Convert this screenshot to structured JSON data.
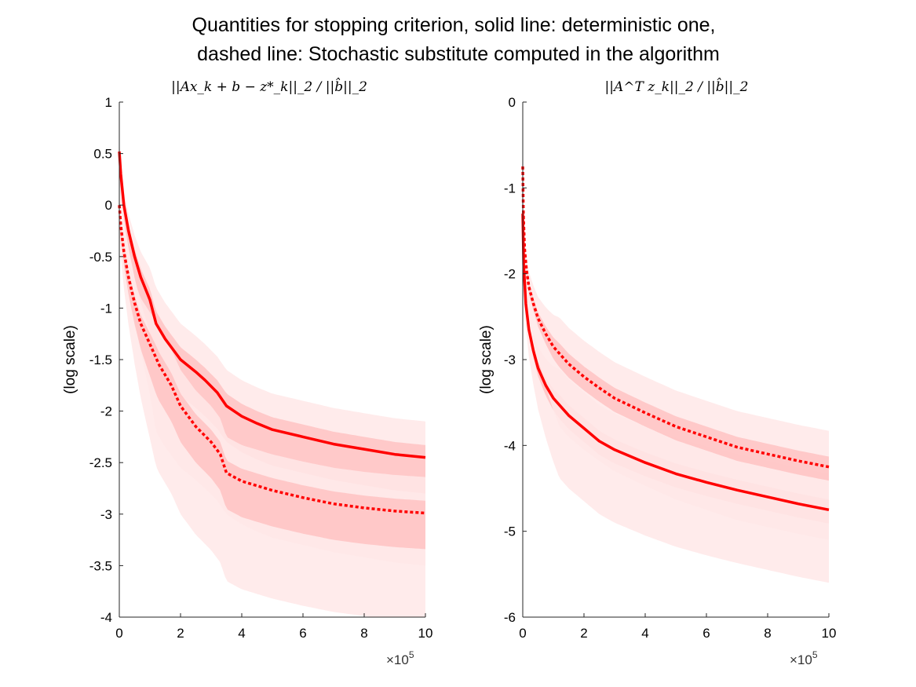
{
  "figure": {
    "title_line1": "Quantities for stopping criterion, solid line: deterministic one,",
    "title_line2": "dashed line: Stochastic substitute computed in the algorithm",
    "line_color": "#ff0000",
    "band_outer_color": "#ffe8e8",
    "band_inner_color": "#ffbdbd",
    "mean_color": "#ff6b6b"
  },
  "chart_data": [
    {
      "type": "line",
      "title": "||Ax_k + b − z*_k||_2 / ||b̂||_2",
      "ylabel": "(log scale)",
      "xlim": [
        0,
        10
      ],
      "x_exponent_label": "×10^5",
      "ylim": [
        -4,
        1
      ],
      "xticks": [
        "0",
        "2",
        "4",
        "6",
        "8",
        "10"
      ],
      "yticks": [
        "1",
        "0.5",
        "0",
        "-0.5",
        "-1",
        "-1.5",
        "-2",
        "-2.5",
        "-3",
        "-3.5",
        "-4"
      ],
      "grid": false,
      "series": [
        {
          "style": "solid",
          "x": [
            0,
            0.05,
            0.15,
            0.3,
            0.5,
            0.7,
            1.0,
            1.2,
            1.5,
            2.0,
            2.5,
            2.8,
            3.2,
            3.5,
            4.0,
            4.5,
            5.0,
            6.0,
            7.0,
            8.0,
            9.0,
            10.0
          ],
          "y": [
            0.52,
            0.3,
            0.0,
            -0.25,
            -0.5,
            -0.7,
            -0.92,
            -1.15,
            -1.3,
            -1.5,
            -1.62,
            -1.7,
            -1.82,
            -1.95,
            -2.05,
            -2.12,
            -2.18,
            -2.25,
            -2.32,
            -2.37,
            -2.42,
            -2.45
          ]
        },
        {
          "style": "dashed",
          "x": [
            0,
            0.05,
            0.15,
            0.3,
            0.5,
            0.7,
            1.0,
            1.3,
            1.7,
            2.0,
            2.5,
            3.0,
            3.3,
            3.5,
            4.0,
            5.0,
            6.0,
            7.0,
            8.0,
            9.0,
            10.0
          ],
          "y": [
            0.0,
            -0.2,
            -0.45,
            -0.7,
            -0.95,
            -1.15,
            -1.35,
            -1.55,
            -1.75,
            -1.95,
            -2.15,
            -2.3,
            -2.42,
            -2.6,
            -2.68,
            -2.77,
            -2.84,
            -2.9,
            -2.94,
            -2.97,
            -2.99
          ]
        }
      ]
    },
    {
      "type": "line",
      "title": "||A^T z_k||_2 / ||b̂||_2",
      "ylabel": "(log scale)",
      "xlim": [
        0,
        10
      ],
      "x_exponent_label": "×10^5",
      "ylim": [
        -6,
        0
      ],
      "xticks": [
        "0",
        "2",
        "4",
        "6",
        "8",
        "10"
      ],
      "yticks": [
        "0",
        "-1",
        "-2",
        "-3",
        "-4",
        "-5",
        "-6"
      ],
      "grid": false,
      "series": [
        {
          "style": "solid",
          "x": [
            0,
            0.03,
            0.1,
            0.2,
            0.35,
            0.5,
            0.75,
            1.0,
            1.5,
            2.0,
            2.5,
            3.0,
            4.0,
            5.0,
            6.0,
            7.0,
            8.0,
            9.0,
            10.0
          ],
          "y": [
            -1.3,
            -1.9,
            -2.35,
            -2.65,
            -2.9,
            -3.1,
            -3.3,
            -3.45,
            -3.65,
            -3.8,
            -3.95,
            -4.05,
            -4.2,
            -4.33,
            -4.43,
            -4.52,
            -4.6,
            -4.68,
            -4.75
          ]
        },
        {
          "style": "dashed",
          "x": [
            0,
            0.02,
            0.06,
            0.12,
            0.2,
            0.35,
            0.5,
            0.75,
            1.0,
            1.5,
            2.0,
            2.5,
            3.0,
            4.0,
            5.0,
            6.0,
            7.0,
            8.0,
            9.0,
            10.0
          ],
          "y": [
            -0.75,
            -1.3,
            -1.7,
            -1.95,
            -2.15,
            -2.35,
            -2.52,
            -2.7,
            -2.85,
            -3.05,
            -3.2,
            -3.33,
            -3.45,
            -3.62,
            -3.78,
            -3.9,
            -4.02,
            -4.1,
            -4.18,
            -4.25
          ]
        }
      ]
    }
  ]
}
